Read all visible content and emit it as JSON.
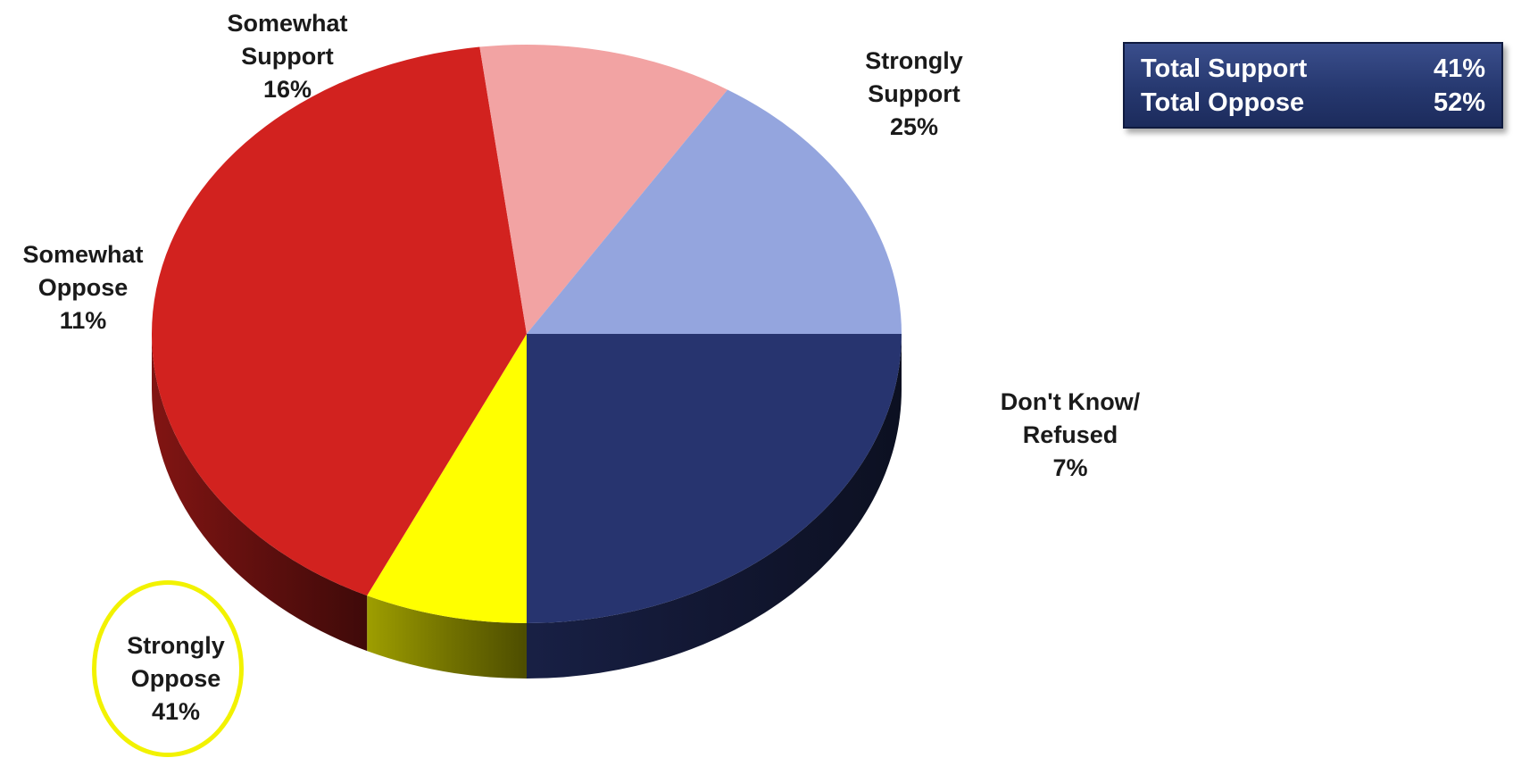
{
  "chart_data": {
    "type": "pie",
    "slices": [
      {
        "label_lines": [
          "Strongly",
          "Support"
        ],
        "value": 25,
        "value_label": "25%",
        "color": "#27346f"
      },
      {
        "label_lines": [
          "Don't Know/",
          "Refused"
        ],
        "value": 7,
        "value_label": "7%",
        "color": "#ffff00"
      },
      {
        "label_lines": [
          "Strongly",
          "Oppose"
        ],
        "value": 41,
        "value_label": "41%",
        "color": "#d2221f"
      },
      {
        "label_lines": [
          "Somewhat",
          "Oppose"
        ],
        "value": 11,
        "value_label": "11%",
        "color": "#f2a3a3"
      },
      {
        "label_lines": [
          "Somewhat",
          "Support"
        ],
        "value": 16,
        "value_label": "16%",
        "color": "#94a5de"
      }
    ],
    "highlighted_slice": "Strongly Oppose",
    "highlight_color": "#f2f200"
  },
  "totals": {
    "rows": [
      {
        "label": "Total Support",
        "value": "41%"
      },
      {
        "label": "Total Oppose",
        "value": "52%"
      }
    ],
    "background_color": "#26386f"
  }
}
